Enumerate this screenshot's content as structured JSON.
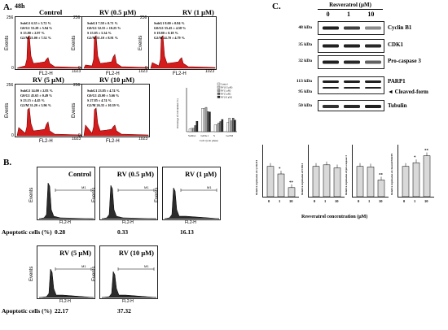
{
  "panel_a": {
    "letter": "A.",
    "time": "48h",
    "axis": {
      "events": "Events",
      "xlabel": "FL2-H",
      "y_max": "256",
      "y_min": "0",
      "x_max": "1023"
    },
    "histograms": [
      {
        "title": "Control",
        "stats": [
          "SubG1   6.35 ± 5.72 %",
          "G0/G1   53.28 ± 5.94 %",
          "S   15.80 ± 2.97 %",
          "G2/M   21.00 ± 7.52 %"
        ]
      },
      {
        "title": "RV (0.5 μM)",
        "stats": [
          "SubG1   7.58 ± 0.71 %",
          "G0/G1   52.55 ± 10.25 %",
          "S   15.85 ± 5.34 %",
          "G2/M   31.10 ± 8.91 %"
        ]
      },
      {
        "title": "RV (1 μM)",
        "stats": [
          "SubG1   8.00 ± 0.84 %",
          "G0/G1   55.45 ± 4.58 %",
          "S   19.80 ± 0.18 %",
          "G2/M   24.70 ± 4.79 %"
        ]
      },
      {
        "title": "RV (5 μM)",
        "stats": [
          "SubG1   14.00 ± 2.83 %",
          "G0/G1   45.65 ± 0.49 %",
          "S   23.15 ± 4.45 %",
          "G2/M   31.20 ± 3.96 %"
        ]
      },
      {
        "title": "RV (10 μM)",
        "stats": [
          "SubG1   23.85 ± 4.74 %",
          "G0/G1   45.00 ± 5.66 %",
          "S   27.85 ± 4.74 %",
          "G2/M   26.35 ± 10.39 %"
        ]
      }
    ],
    "summary_chart": {
      "ylabel": "Percentage of cell number (%)",
      "xlabel": "Cell cycle phase",
      "legend": [
        "Control",
        "RV (0.5 μM)",
        "RV (1 μM)",
        "RV (5 μM)",
        "RV (10 μM)"
      ]
    }
  },
  "panel_b": {
    "letter": "B.",
    "apoptotic_label": "Apoptotic cells (%)",
    "gate": "M1",
    "axis": {
      "events": "Events",
      "xlabel": "FL2-H"
    },
    "histograms": [
      {
        "title": "Control",
        "value": "0.28"
      },
      {
        "title": "RV (0.5 μM)",
        "value": "0.33"
      },
      {
        "title": "RV (1 μM)",
        "value": "16.13"
      },
      {
        "title": "RV (5 μM)",
        "value": "22.17"
      },
      {
        "title": "RV (10 μM)",
        "value": "37.32"
      }
    ]
  },
  "panel_c": {
    "letter": "C.",
    "treatment": "Resveratrol (μM)",
    "doses": [
      "0",
      "1",
      "10"
    ],
    "blots": [
      {
        "kda": "48 kDa",
        "protein": "Cyclin B1"
      },
      {
        "kda": "35 kDa",
        "protein": "CDK1"
      },
      {
        "kda": "32 kDa",
        "protein": "Pro-caspase 3"
      },
      {
        "kda": "113 kDa",
        "protein": "PARP1"
      },
      {
        "kda": "95 kDa",
        "protein": "◄ Cleaved-form"
      },
      {
        "kda": "50 kDa",
        "protein": "Tubulin"
      }
    ],
    "xlabel": "Resveratrol concentration (μM)"
  },
  "chart_data": [
    {
      "type": "bar",
      "title": "",
      "xlabel": "Cell cycle phase",
      "ylabel": "Percentage of cell number (%)",
      "categories": [
        "SubG1",
        "G0/G1",
        "S",
        "G2/M"
      ],
      "ylim": [
        0,
        100
      ],
      "series": [
        {
          "name": "Control",
          "values": [
            6.35,
            53.28,
            15.8,
            21.0
          ]
        },
        {
          "name": "RV (0.5 μM)",
          "values": [
            7.58,
            52.55,
            15.85,
            31.1
          ]
        },
        {
          "name": "RV (1 μM)",
          "values": [
            8.0,
            55.45,
            19.8,
            24.7
          ]
        },
        {
          "name": "RV (5 μM)",
          "values": [
            14.0,
            45.65,
            23.15,
            31.2
          ]
        },
        {
          "name": "RV (10 μM)",
          "values": [
            23.85,
            45.0,
            27.85,
            26.35
          ]
        }
      ]
    },
    {
      "type": "bar",
      "ylabel": "Relative expression of cyclin B1",
      "categories": [
        "0",
        "1",
        "10"
      ],
      "values": [
        1.0,
        0.75,
        0.3
      ],
      "significance": [
        "",
        "*",
        "**"
      ],
      "ylim": [
        0,
        1.5
      ]
    },
    {
      "type": "bar",
      "ylabel": "Relative expression of CDK1",
      "categories": [
        "0",
        "1",
        "10"
      ],
      "values": [
        1.0,
        1.05,
        0.95
      ],
      "significance": [
        "",
        "",
        ""
      ],
      "ylim": [
        0,
        1.5
      ]
    },
    {
      "type": "bar",
      "ylabel": "Relative expression of pro-caspase 3",
      "categories": [
        "0",
        "1",
        "10"
      ],
      "values": [
        1.0,
        0.98,
        0.55
      ],
      "significance": [
        "",
        "",
        "**"
      ],
      "ylim": [
        0,
        1.5
      ]
    },
    {
      "type": "bar",
      "ylabel": "Relative expression of cleaved PARP1",
      "categories": [
        "0",
        "1",
        "10"
      ],
      "values": [
        1.0,
        1.12,
        1.35
      ],
      "significance": [
        "",
        "*",
        "**"
      ],
      "ylim": [
        0,
        1.5
      ]
    }
  ]
}
